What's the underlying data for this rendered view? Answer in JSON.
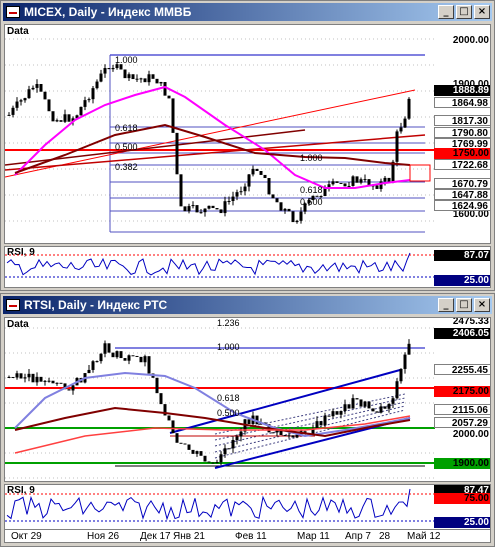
{
  "windows": [
    {
      "title": "MICEX, Daily - Индекс ММВБ",
      "pane_label": "Data",
      "indicator_label": "RSI, 9",
      "scale_ticks": [
        "2000.00",
        "1900.00",
        "1600.00"
      ],
      "price_boxes": [
        {
          "value": "1888.89",
          "bg": "#000000",
          "fg": "#ffffff"
        },
        {
          "value": "1864.98",
          "bg": "#ffffff",
          "fg": "#000000"
        },
        {
          "value": "1817.30",
          "bg": "#ffffff",
          "fg": "#000000"
        },
        {
          "value": "1790.80",
          "bg": "#ffffff",
          "fg": "#000000"
        },
        {
          "value": "1769.99",
          "bg": "#ffffff",
          "fg": "#000000"
        },
        {
          "value": "1750.00",
          "bg": "#ff0000",
          "fg": "#000000"
        },
        {
          "value": "1722.68",
          "bg": "#ffffff",
          "fg": "#000000"
        },
        {
          "value": "1670.79",
          "bg": "#ffffff",
          "fg": "#000000"
        },
        {
          "value": "1647.88",
          "bg": "#ffffff",
          "fg": "#000000"
        },
        {
          "value": "1624.96",
          "bg": "#ffffff",
          "fg": "#000000"
        }
      ],
      "fib_labels": [
        "1.000",
        "0.618",
        "0.500",
        "0.382",
        "1.000",
        "0.618",
        "0.500"
      ],
      "rsi_boxes": [
        {
          "value": "87.07",
          "bg": "#000000",
          "fg": "#ffffff"
        },
        {
          "value": "25.00",
          "bg": "#000080",
          "fg": "#ffffff"
        }
      ]
    },
    {
      "title": "RTSI, Daily - Индекс РТС",
      "pane_label": "Data",
      "indicator_label": "RSI, 9",
      "scale_ticks": [
        "2475.33",
        "2000.00"
      ],
      "price_boxes": [
        {
          "value": "2406.05",
          "bg": "#000000",
          "fg": "#ffffff"
        },
        {
          "value": "2255.45",
          "bg": "#ffffff",
          "fg": "#000000"
        },
        {
          "value": "2175.00",
          "bg": "#ff0000",
          "fg": "#000000"
        },
        {
          "value": "2115.06",
          "bg": "#ffffff",
          "fg": "#000000"
        },
        {
          "value": "2057.29",
          "bg": "#ffffff",
          "fg": "#000000"
        },
        {
          "value": "1900.00",
          "bg": "#00a000",
          "fg": "#000000"
        }
      ],
      "fib_labels": [
        "1.236",
        "1.000",
        "0.618",
        "0.500"
      ],
      "rsi_boxes": [
        {
          "value": "87.47",
          "bg": "#000000",
          "fg": "#ffffff"
        },
        {
          "value": "75.00",
          "bg": "#ff0000",
          "fg": "#000000"
        },
        {
          "value": "25.00",
          "bg": "#000080",
          "fg": "#ffffff"
        }
      ],
      "x_ticks": [
        "Окт 29",
        "Ноя 26",
        "Дек 17",
        "Янв 21",
        "Фев 11",
        "Мар 11",
        "Апр 7",
        "28",
        "Май 12"
      ]
    }
  ],
  "buttons": {
    "min": "_",
    "max": "□",
    "close": "×"
  },
  "colors": {
    "up": "#00a000",
    "down": "#000000",
    "ma_fast": "#ff00ff",
    "ma_slow": "#800000",
    "support": "#ff0000",
    "channel": "#0000c0"
  }
}
